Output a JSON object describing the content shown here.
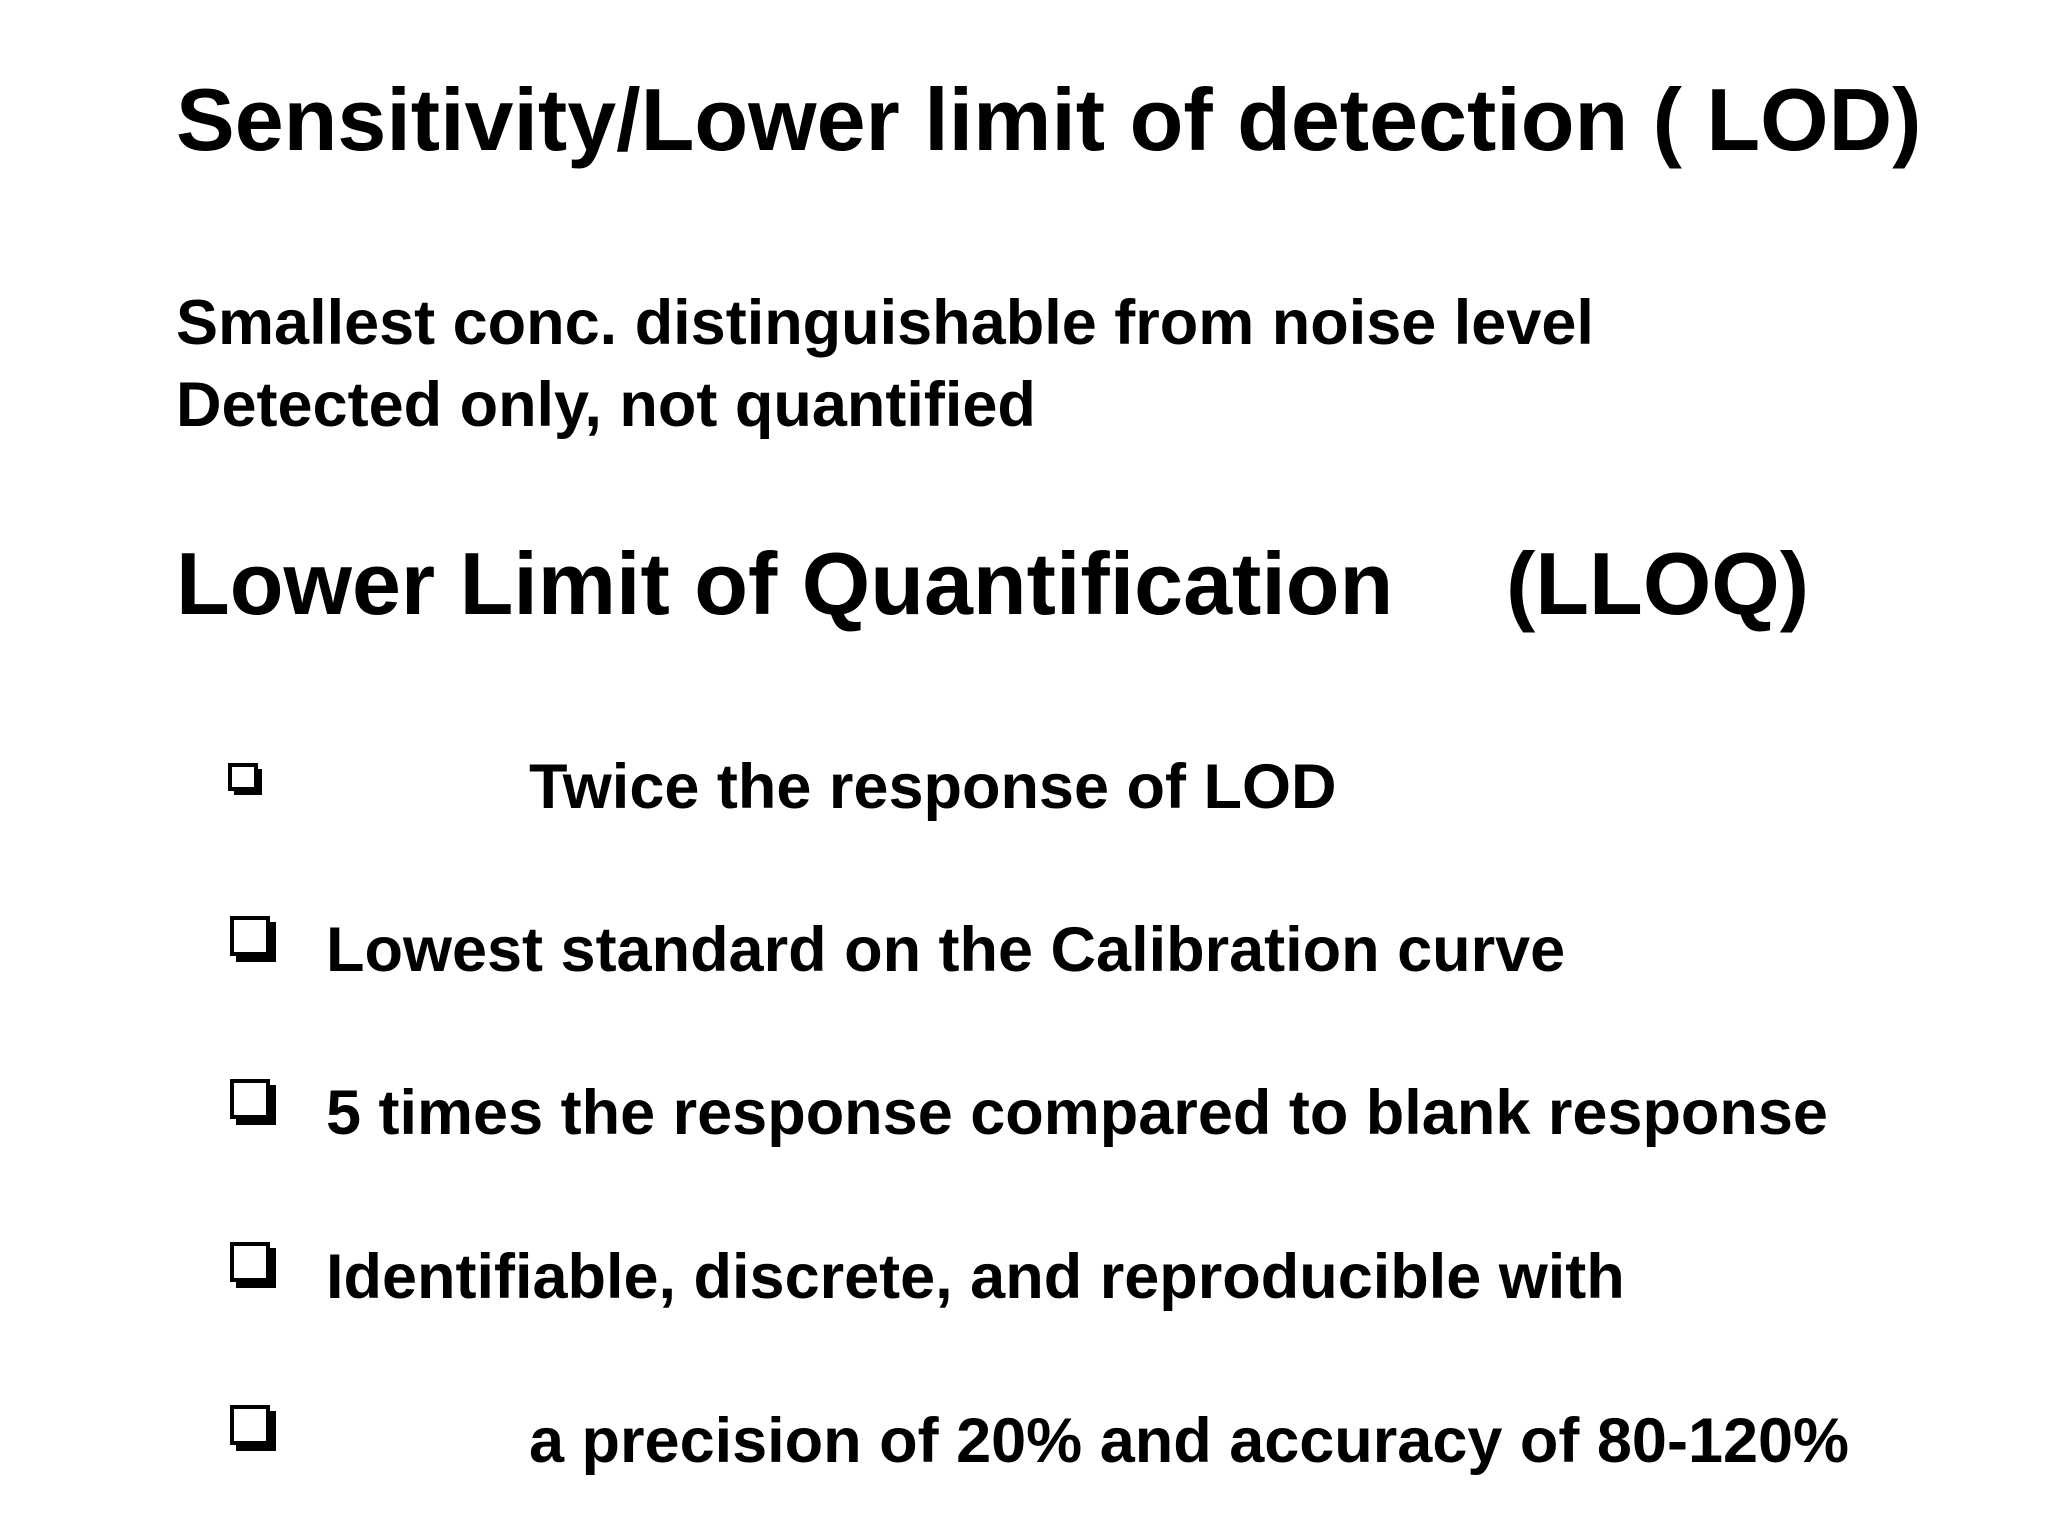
{
  "title": "Sensitivity/Lower limit of detection ( LOD)",
  "definition": [
    "Smallest conc. distinguishable from noise level",
    "Detected only, not quantified"
  ],
  "heading": {
    "name": "Lower Limit of Quantification",
    "abbreviation": "(LLOQ)"
  },
  "bullets": [
    "Twice the response of LOD",
    "Lowest standard on the Calibration curve",
    "5 times the response compared to blank response",
    "Identifiable, discrete, and reproducible with",
    "a precision of 20% and accuracy of 80-120%"
  ]
}
